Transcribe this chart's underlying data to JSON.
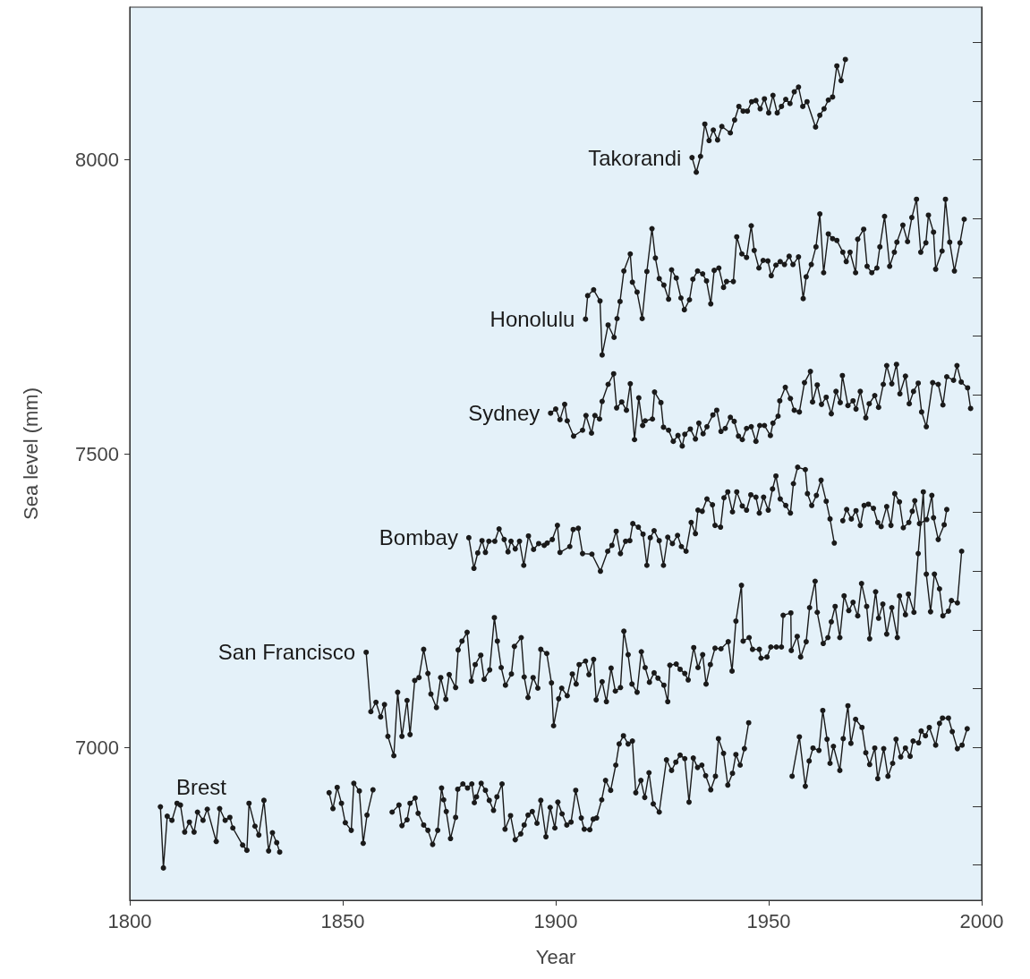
{
  "chart_data": {
    "type": "line",
    "xlabel": "Year",
    "ylabel": "Sea level (mm)",
    "xlim": [
      1800,
      2000
    ],
    "xticks": [
      1800,
      1850,
      1900,
      1950,
      2000
    ],
    "ylim": [
      6740,
      8260
    ],
    "yticks": [
      {
        "value": 6800,
        "label": null
      },
      {
        "value": 6900,
        "label": null
      },
      7000,
      {
        "value": 7100,
        "label": null
      },
      {
        "value": 7200,
        "label": null
      },
      {
        "value": 7300,
        "label": null
      },
      {
        "value": 7400,
        "label": null
      },
      7500,
      {
        "value": 7600,
        "label": null
      },
      {
        "value": 7700,
        "label": null
      },
      {
        "value": 7800,
        "label": null
      },
      {
        "value": 7900,
        "label": null
      },
      8000,
      {
        "value": 8100,
        "label": null
      },
      {
        "value": 8200,
        "label": null
      }
    ],
    "marker": "circle",
    "line_style": "solid",
    "series": [
      {
        "name": "Takorandi",
        "color": "#1a1a1a",
        "x": [
          1932,
          1933,
          1934,
          1935,
          1936,
          1937,
          1938,
          1939,
          1941,
          1942,
          1943,
          1944,
          1945,
          1946,
          1947,
          1948,
          1949,
          1950,
          1951,
          1952,
          1953,
          1954,
          1955,
          1956,
          1957,
          1958,
          1959,
          1961,
          1962,
          1963,
          1964,
          1965,
          1966,
          1967,
          1968
        ],
        "values": [
          8004,
          7979,
          8006,
          8061,
          8033,
          8051,
          8034,
          8057,
          8046,
          8068,
          8091,
          8083,
          8083,
          8099,
          8101,
          8087,
          8104,
          8080,
          8110,
          8080,
          8091,
          8103,
          8096,
          8116,
          8124,
          8091,
          8099,
          8056,
          8076,
          8087,
          8102,
          8107,
          8160,
          8135,
          8171
        ]
      },
      {
        "name": "Honolulu",
        "color": "#1a1a1a",
        "x": [
          1907.0,
          1907.5,
          1908.9,
          1910.4,
          1910.9,
          1912.3,
          1913.7,
          1914.4,
          1915.1,
          1916.0,
          1917.5,
          1918.0,
          1919.1,
          1920.3,
          1921.4,
          1922.6,
          1923.4,
          1924.3,
          1925.4,
          1926.5,
          1927.2,
          1928.3,
          1929.4,
          1930.2,
          1931.4,
          1932.2,
          1933.3,
          1934.5,
          1935.4,
          1936.4,
          1937.2,
          1938.3,
          1939.4,
          1940.1,
          1941.7,
          1942.5,
          1943.7,
          1944.8,
          1945.9,
          1946.6,
          1947.7,
          1948.7,
          1949.8,
          1950.6,
          1951.7,
          1952.7,
          1953.7,
          1954.8,
          1955.7,
          1957.0,
          1958.1,
          1958.8,
          1960.0,
          1961.1,
          1962.0,
          1962.9,
          1964.0,
          1965.0,
          1966.0,
          1967.4,
          1968.2,
          1969.1,
          1970.4,
          1970.9,
          1972.3,
          1973.1,
          1974.2,
          1975.4,
          1976.1,
          1977.2,
          1978.4,
          1979.5,
          1980.1,
          1981.5,
          1982.6,
          1983.6,
          1984.7,
          1985.7,
          1986.9,
          1987.5,
          1988.7,
          1989.2,
          1990.7,
          1991.5,
          1992.5,
          1993.6,
          1994.9,
          1995.9
        ],
        "values": [
          7729,
          7769,
          7779,
          7760,
          7668,
          7719,
          7698,
          7730,
          7759,
          7811,
          7840,
          7792,
          7775,
          7730,
          7810,
          7883,
          7833,
          7798,
          7787,
          7763,
          7813,
          7799,
          7765,
          7745,
          7762,
          7797,
          7811,
          7806,
          7794,
          7755,
          7812,
          7816,
          7783,
          7793,
          7793,
          7869,
          7840,
          7834,
          7888,
          7846,
          7816,
          7829,
          7828,
          7803,
          7821,
          7827,
          7822,
          7836,
          7822,
          7835,
          7764,
          7801,
          7822,
          7852,
          7908,
          7808,
          7874,
          7866,
          7863,
          7843,
          7827,
          7843,
          7808,
          7865,
          7882,
          7819,
          7808,
          7816,
          7852,
          7904,
          7819,
          7843,
          7860,
          7889,
          7861,
          7902,
          7933,
          7843,
          7859,
          7906,
          7877,
          7814,
          7845,
          7933,
          7860,
          7811,
          7859,
          7899
        ]
      },
      {
        "name": "Sydney",
        "color": "#1a1a1a",
        "x": [
          1898.8,
          1900.0,
          1901.0,
          1902.1,
          1902.7,
          1904.2,
          1906.3,
          1907.1,
          1908.4,
          1909.2,
          1910.3,
          1910.9,
          1912.3,
          1913.6,
          1914.3,
          1915.5,
          1916.6,
          1917.5,
          1918.5,
          1919.5,
          1920.4,
          1921.0,
          1922.7,
          1923.2,
          1924.7,
          1925.3,
          1926.5,
          1927.6,
          1928.7,
          1929.7,
          1930.3,
          1931.6,
          1932.8,
          1933.6,
          1934.6,
          1935.5,
          1936.9,
          1937.8,
          1938.8,
          1939.8,
          1941.0,
          1941.9,
          1942.9,
          1943.8,
          1944.8,
          1945.9,
          1947.0,
          1947.9,
          1949.0,
          1950.4,
          1951.0,
          1952.2,
          1952.6,
          1953.9,
          1955.1,
          1956.0,
          1957.2,
          1958.4,
          1959.8,
          1960.3,
          1961.4,
          1962.4,
          1963.5,
          1964.7,
          1965.8,
          1966.8,
          1967.3,
          1968.6,
          1969.8,
          1970.5,
          1971.5,
          1972.8,
          1973.6,
          1974.9,
          1975.8,
          1976.9,
          1977.7,
          1978.9,
          1980.0,
          1980.8,
          1982.1,
          1983.0,
          1984.0,
          1985.1,
          1985.9,
          1987.0,
          1988.5,
          1989.8,
          1990.9,
          1991.8,
          1993.4,
          1994.2,
          1995.2,
          1996.7,
          1997.4
        ],
        "values": [
          7569,
          7576,
          7558,
          7584,
          7556,
          7530,
          7540,
          7565,
          7535,
          7565,
          7559,
          7589,
          7618,
          7636,
          7578,
          7588,
          7574,
          7619,
          7524,
          7595,
          7548,
          7556,
          7559,
          7605,
          7587,
          7545,
          7540,
          7521,
          7531,
          7513,
          7533,
          7542,
          7525,
          7552,
          7534,
          7546,
          7566,
          7574,
          7538,
          7543,
          7562,
          7555,
          7530,
          7524,
          7543,
          7546,
          7521,
          7548,
          7548,
          7531,
          7552,
          7564,
          7590,
          7613,
          7594,
          7574,
          7571,
          7621,
          7640,
          7588,
          7617,
          7584,
          7596,
          7568,
          7606,
          7587,
          7633,
          7582,
          7590,
          7576,
          7606,
          7561,
          7585,
          7599,
          7579,
          7618,
          7650,
          7619,
          7652,
          7602,
          7632,
          7585,
          7606,
          7620,
          7571,
          7546,
          7621,
          7618,
          7583,
          7631,
          7625,
          7650,
          7622,
          7612,
          7577
        ]
      },
      {
        "name": "Bombay",
        "color": "#1a1a1a",
        "x": [
          1879.6,
          1880.8,
          1881.7,
          1882.7,
          1883.5,
          1884.3,
          1885.7,
          1886.7,
          1887.9,
          1888.8,
          1889.5,
          1890.5,
          1891.5,
          1892.5,
          1893.6,
          1894.8,
          1896.0,
          1897.3,
          1898.0,
          1899.2,
          1900.4,
          1901.0,
          1903.3,
          1904.1,
          1905.3,
          1906.3,
          1908.5,
          1910.5,
          1912.2,
          1913.2,
          1914.2,
          1915.2,
          1916.4,
          1917.4,
          1918.1,
          1919.4,
          1920.5,
          1921.4,
          1922.2,
          1923.1,
          1924.3,
          1925.3,
          1926.3,
          1927.4,
          1928.6,
          1929.5,
          1930.6,
          1931.8,
          1932.8,
          1933.4,
          1934.4,
          1935.5,
          1936.8,
          1937.4,
          1938.7,
          1939.5,
          1940.4,
          1941.5,
          1942.5,
          1943.8,
          1944.8,
          1945.8,
          1947.0,
          1947.8,
          1948.8,
          1949.9,
          1950.9,
          1951.7,
          1952.7,
          1954.0,
          1955.1,
          1955.8,
          1956.8,
          1958.6,
          1959.1,
          1960.1,
          1961.2,
          1962.3,
          1963.5,
          1964.4,
          1965.4,
          1966.4,
          1967.4,
          1968.3,
          1969.4,
          1970.5,
          1971.5,
          1972.4,
          1973.4,
          1974.6,
          1975.6,
          1976.4,
          1977.7,
          1978.7,
          1979.6,
          1980.7,
          1981.6,
          1982.9,
          1983.7,
          1984.3,
          1985.4,
          1987.1,
          1988.3,
          1988.7,
          1989.8,
          1991.2,
          1991.8
        ],
        "values": [
          7357,
          7305,
          7331,
          7352,
          7332,
          7351,
          7351,
          7372,
          7354,
          7333,
          7351,
          7338,
          7351,
          7310,
          7360,
          7337,
          7347,
          7344,
          7348,
          7354,
          7378,
          7332,
          7342,
          7371,
          7373,
          7330,
          7329,
          7300,
          7334,
          7344,
          7368,
          7330,
          7351,
          7352,
          7381,
          7375,
          7363,
          7310,
          7357,
          7369,
          7352,
          7310,
          7358,
          7347,
          7361,
          7342,
          7334,
          7383,
          7364,
          7404,
          7402,
          7423,
          7413,
          7378,
          7375,
          7425,
          7435,
          7401,
          7435,
          7411,
          7404,
          7430,
          7426,
          7399,
          7426,
          7404,
          7440,
          7462,
          7423,
          7412,
          7399,
          7449,
          7477,
          7473,
          7432,
          7412,
          7429,
          7455,
          7419,
          7389,
          7348,
          null,
          7386,
          7405,
          7389,
          7403,
          7378,
          7412,
          7414,
          7407,
          7383,
          7376,
          7410,
          7378,
          7432,
          7418,
          7374,
          7383,
          7402,
          7420,
          7381,
          7388,
          7429,
          7391,
          7354,
          7379,
          7405
        ]
      },
      {
        "name": "San Francisco",
        "color": "#1a1a1a",
        "x": [
          1855.5,
          1856.6,
          1857.8,
          1858.9,
          1859.8,
          1860.6,
          1862.0,
          1862.9,
          1863.9,
          1865.1,
          1865.8,
          1866.9,
          1867.9,
          1869.0,
          1870.0,
          1870.7,
          1872.0,
          1873.0,
          1874.2,
          1875.0,
          1876.5,
          1877.1,
          1878.0,
          1879.2,
          1880.2,
          1881.1,
          1882.4,
          1883.2,
          1884.5,
          1885.6,
          1886.3,
          1887.2,
          1888.2,
          1889.6,
          1890.3,
          1891.9,
          1892.6,
          1893.5,
          1894.7,
          1895.8,
          1896.5,
          1897.9,
          1899.0,
          1899.5,
          1900.7,
          1901.4,
          1902.7,
          1903.9,
          1904.8,
          1905.5,
          1907.0,
          1907.8,
          1908.9,
          1909.5,
          1910.9,
          1911.9,
          1913.0,
          1914.0,
          1915.2,
          1916.0,
          1917.0,
          1917.9,
          1919.1,
          1920.1,
          1921.0,
          1922.0,
          1923.1,
          1924.0,
          1925.4,
          1926.3,
          1926.8,
          1928.3,
          1929.2,
          1930.3,
          1931.1,
          1932.4,
          1933.4,
          1934.5,
          1935.3,
          1936.3,
          1937.4,
          1938.8,
          1940.5,
          1941.4,
          1942.3,
          1943.6,
          1944.0,
          1945.4,
          1946.2,
          1947.8,
          1948.2,
          1949.6,
          1950.5,
          1951.8,
          1953.0,
          1953.4,
          1955.2,
          1955.3,
          1956.7,
          1957.5,
          1958.8,
          1959.6,
          1960.9,
          1961.4,
          1962.8,
          1963.9,
          1964.7,
          1965.6,
          1966.7,
          1967.7,
          1968.8,
          1969.8,
          1970.9,
          1971.8,
          1973.0,
          1973.7,
          1975.1,
          1975.8,
          1976.8,
          1977.7,
          1978.9,
          1980.2,
          1980.7,
          1982.1,
          1982.8,
          1984.1,
          1985.1,
          1986.3,
          1987.0,
          1988.0,
          1988.9,
          1990.1,
          1990.9,
          1992.2,
          1992.9,
          1994.3,
          1995.3
        ],
        "values": [
          7162,
          7061,
          7077,
          7052,
          7073,
          7019,
          6986,
          7094,
          7019,
          7080,
          7022,
          7114,
          7119,
          7167,
          7126,
          7091,
          7068,
          7119,
          7082,
          7124,
          7102,
          7166,
          7181,
          7196,
          7113,
          7141,
          7157,
          7116,
          7132,
          7221,
          7181,
          7136,
          7106,
          7125,
          7172,
          7187,
          7120,
          7085,
          7119,
          7101,
          7167,
          7160,
          7110,
          7037,
          7083,
          7101,
          7088,
          7125,
          7108,
          7141,
          7147,
          7124,
          7150,
          7081,
          7112,
          7078,
          7135,
          7096,
          7102,
          7198,
          7158,
          7108,
          7094,
          7163,
          7136,
          7111,
          7127,
          7118,
          7106,
          7078,
          7140,
          7142,
          7133,
          7126,
          7115,
          7170,
          7136,
          7158,
          7108,
          7141,
          7169,
          7168,
          7180,
          7130,
          7215,
          7276,
          7181,
          7187,
          7167,
          7167,
          7152,
          7154,
          7171,
          7171,
          7171,
          7225,
          7229,
          7165,
          7189,
          7154,
          7180,
          7238,
          7283,
          7230,
          7177,
          7187,
          7214,
          7240,
          7187,
          7258,
          7233,
          7247,
          7224,
          7279,
          7240,
          7185,
          7265,
          7220,
          7244,
          7193,
          7238,
          7187,
          7258,
          7226,
          7261,
          7230,
          7330,
          7435,
          7295,
          7231,
          7295,
          7270,
          7224,
          7232,
          7250,
          7246,
          7334
        ]
      },
      {
        "name": "Brest",
        "color": "#1a1a1a",
        "x": [
          1807.2,
          1807.9,
          1808.8,
          1809.9,
          1811.1,
          1811.9,
          1812.9,
          1814.0,
          1815.1,
          1815.9,
          1817.2,
          1818.2,
          1820.3,
          1821.1,
          1822.4,
          1823.5,
          1824.2,
          1826.5,
          1827.5,
          1828.0,
          1829.4,
          1830.3,
          1831.5,
          1832.6,
          1833.5,
          1834.5,
          1835.2,
          1840,
          1846.8,
          1847.7,
          1848.7,
          1849.7,
          1850.6,
          1852.0,
          1852.6,
          1853.9,
          1854.8,
          1855.7,
          1857.1,
          1859,
          1861.6,
          1863.2,
          1863.9,
          1865.1,
          1865.8,
          1867.0,
          1867.7,
          1869.0,
          1870.0,
          1871.1,
          1872.3,
          1873.2,
          1873.7,
          1874.3,
          1875.3,
          1876.5,
          1877.0,
          1878.2,
          1879.3,
          1880.3,
          1880.9,
          1881.4,
          1882.5,
          1883.5,
          1884.4,
          1885.4,
          1886.2,
          1887.4,
          1888.1,
          1889.4,
          1890.5,
          1891.8,
          1892.6,
          1893.5,
          1894.5,
          1895.6,
          1896.5,
          1897.7,
          1898.7,
          1899.8,
          1900.5,
          1901.5,
          1902.6,
          1903.6,
          1904.7,
          1906.0,
          1906.7,
          1908.0,
          1908.8,
          1909.6,
          1910.8,
          1911.7,
          1912.9,
          1914.1,
          1914.9,
          1915.9,
          1917.0,
          1918.0,
          1918.8,
          1920.0,
          1920.9,
          1921.9,
          1922.9,
          1924.3,
          1926.0,
          1927.2,
          1928.2,
          1929.2,
          1930.3,
          1931.3,
          1932.3,
          1933.3,
          1934.3,
          1935.2,
          1936.4,
          1937.5,
          1938.2,
          1939.4,
          1940.4,
          1941.5,
          1942.3,
          1943.3,
          1944.3,
          1945.3,
          1950,
          1955.5,
          1957.2,
          1958.6,
          1959.5,
          1960.4,
          1961.8,
          1962.7,
          1963.7,
          1964.4,
          1965.2,
          1966.7,
          1967.5,
          1968.6,
          1969.3,
          1970.4,
          1971.9,
          1972.8,
          1973.7,
          1974.9,
          1975.6,
          1977.0,
          1978.0,
          1979.1,
          1979.9,
          1981.0,
          1982.1,
          1983.2,
          1983.9,
          1985.2,
          1985.8,
          1986.8,
          1987.7,
          1989.2,
          1990.1,
          1990.8,
          1992.2,
          1993.1,
          1994.3,
          1995.4,
          1996.6
        ],
        "values": [
          6899,
          6795,
          6883,
          6876,
          6905,
          6902,
          6856,
          6873,
          6856,
          6890,
          6876,
          6895,
          6840,
          6896,
          6876,
          6881,
          6863,
          6834,
          6825,
          6905,
          6866,
          6851,
          6910,
          6824,
          6855,
          6838,
          6822,
          null,
          6923,
          6896,
          6932,
          6905,
          6872,
          6859,
          6939,
          6926,
          6837,
          6885,
          6928,
          null,
          6890,
          6902,
          6867,
          6877,
          6905,
          6914,
          6888,
          6868,
          6859,
          6835,
          6859,
          6931,
          6911,
          6891,
          6845,
          6881,
          6929,
          6938,
          6931,
          6938,
          6906,
          6916,
          6939,
          6927,
          6910,
          6893,
          6916,
          6938,
          6861,
          6884,
          6843,
          6853,
          6868,
          6885,
          6891,
          6871,
          6910,
          6848,
          6898,
          6863,
          6907,
          6887,
          6868,
          6873,
          6927,
          6880,
          6861,
          6860,
          6878,
          6880,
          6911,
          6944,
          6927,
          6970,
          7006,
          7020,
          7006,
          7011,
          6923,
          6944,
          6915,
          6957,
          6904,
          6890,
          6979,
          6961,
          6975,
          6987,
          6981,
          6907,
          6982,
          6966,
          6970,
          6952,
          6928,
          6951,
          7015,
          6990,
          6936,
          6956,
          6988,
          6970,
          6998,
          7042,
          null,
          6951,
          7018,
          6934,
          6977,
          6999,
          6995,
          7063,
          7014,
          6973,
          7002,
          6961,
          7015,
          7071,
          7007,
          7048,
          7034,
          6991,
          6971,
          6999,
          6947,
          6998,
          6951,
          6973,
          7014,
          6984,
          6999,
          6985,
          7011,
          7008,
          7028,
          7020,
          7034,
          7004,
          7041,
          7050,
          7050,
          7027,
          6998,
          7004,
          7032
        ]
      }
    ]
  }
}
